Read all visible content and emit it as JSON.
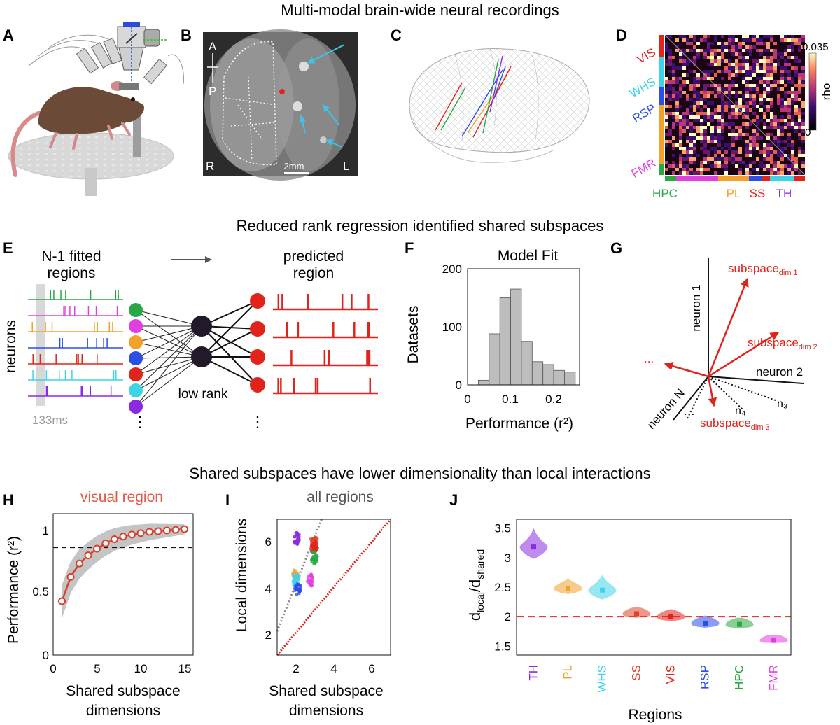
{
  "section_titles": [
    "Multi-modal brain-wide neural recordings",
    "Reduced rank regression identified shared subspaces",
    "Shared subspaces have lower dimensionality than local interactions"
  ],
  "panel_letters": [
    "A",
    "B",
    "C",
    "D",
    "E",
    "F",
    "G",
    "H",
    "I",
    "J"
  ],
  "panel_b": {
    "anterior": "A",
    "posterior": "P",
    "right": "R",
    "left": "L",
    "scale_bar": "2mm"
  },
  "panel_d": {
    "colorbar_max": "0.035",
    "colorbar_min": "0",
    "colorbar_label": "rho",
    "row_labels": [
      "VIS",
      "WHS",
      "RSP",
      "FMR"
    ],
    "col_labels": [
      "HPC",
      "PL",
      "SS",
      "TH"
    ]
  },
  "panel_e": {
    "fitted_title_1": "N-1 fitted",
    "fitted_title_2": "regions",
    "predicted_title_1": "predicted",
    "predicted_title_2": "region",
    "y_label": "neurons",
    "time_label": "133ms",
    "low_rank": "low rank",
    "ellipsis": "⋮"
  },
  "panel_f": {
    "title": "Model Fit",
    "ylabel": "Datasets",
    "xlabel": "Performance (r²)",
    "xticks": [
      "0",
      "0.1",
      "0.2"
    ],
    "yticks": [
      "0",
      "100",
      "200"
    ]
  },
  "panel_g": {
    "neuron1": "neuron 1",
    "neuron2": "neuron 2",
    "neuronN": "neuron N",
    "n3": "n₃",
    "n4": "n₄",
    "sub1": "subspace",
    "sub1_sub": "dim 1",
    "sub2": "subspace",
    "sub2_sub": "dim 2",
    "sub3": "subspace",
    "sub3_sub": "dim 3",
    "dots": "..."
  },
  "panel_h": {
    "title": "visual region",
    "ylabel": "Performance (r²)",
    "xlabel_1": "Shared subspace",
    "xlabel_2": "dimensions",
    "xticks": [
      "0",
      "5",
      "10",
      "15"
    ],
    "yticks": [
      "0",
      "0.5",
      "1"
    ]
  },
  "panel_i": {
    "title": "all regions",
    "ylabel": "Local dimensions",
    "xlabel_1": "Shared subspace",
    "xlabel_2": "dimensions",
    "xticks": [
      "2",
      "4",
      "6"
    ],
    "yticks": [
      "2",
      "4",
      "6"
    ]
  },
  "panel_j": {
    "ylabel_main": "d",
    "ylabel_sub1": "local",
    "ylabel_slash": "/d",
    "ylabel_sub2": "shared",
    "xlabel": "Regions",
    "yticks": [
      "1.5",
      "2",
      "2.5",
      "3",
      "3.5"
    ]
  },
  "colors": {
    "green": "#27a844",
    "magenta": "#e040e0",
    "orange": "#f2a12a",
    "blue": "#2b4de8",
    "red": "#e0241b",
    "cyan": "#3fd3e8",
    "purple": "#8a2be2",
    "gray": "#b0b0b0"
  },
  "chart_data": [
    {
      "type": "bar",
      "title": "Model Fit",
      "xlabel": "Performance (r²)",
      "ylabel": "Datasets",
      "bin_edges": [
        0.025,
        0.05,
        0.075,
        0.1,
        0.125,
        0.15,
        0.175,
        0.2,
        0.225,
        0.25
      ],
      "values": [
        8,
        88,
        150,
        165,
        75,
        40,
        35,
        25,
        22
      ],
      "xlim": [
        0,
        0.26
      ],
      "ylim": [
        0,
        200
      ]
    },
    {
      "type": "line",
      "title": "visual region",
      "xlabel": "Shared subspace dimensions",
      "ylabel": "Performance (r²)",
      "x": [
        1,
        2,
        3,
        4,
        5,
        6,
        7,
        8,
        9,
        10,
        11,
        12,
        13,
        14,
        15
      ],
      "y": [
        0.4,
        0.58,
        0.68,
        0.74,
        0.79,
        0.83,
        0.86,
        0.88,
        0.895,
        0.905,
        0.915,
        0.92,
        0.925,
        0.93,
        0.935
      ],
      "reference_line": 0.8,
      "xlim": [
        0,
        16
      ],
      "ylim": [
        0,
        1.05
      ]
    },
    {
      "type": "scatter",
      "title": "all regions",
      "xlabel": "Shared subspace dimensions",
      "ylabel": "Local dimensions",
      "clusters": [
        {
          "region": "TH",
          "x": 2.05,
          "y": 6.15
        },
        {
          "region": "PL",
          "x": 2.0,
          "y": 4.55
        },
        {
          "region": "WHS",
          "x": 2.0,
          "y": 4.3
        },
        {
          "region": "SS",
          "x": 2.95,
          "y": 6.05
        },
        {
          "region": "VIS",
          "x": 2.95,
          "y": 5.75
        },
        {
          "region": "RSP",
          "x": 2.1,
          "y": 3.9
        },
        {
          "region": "HPC",
          "x": 2.95,
          "y": 5.3
        },
        {
          "region": "FMR",
          "x": 2.75,
          "y": 4.3
        }
      ],
      "xlim": [
        1,
        7
      ],
      "ylim": [
        1,
        7
      ]
    },
    {
      "type": "bar",
      "title": "",
      "xlabel": "Regions",
      "ylabel": "dlocal/dshared",
      "categories": [
        "TH",
        "PL",
        "WHS",
        "SS",
        "VIS",
        "RSP",
        "HPC",
        "FMR"
      ],
      "values": [
        3.18,
        2.48,
        2.45,
        2.05,
        2.0,
        1.89,
        1.87,
        1.6
      ],
      "reference_line": 2.0,
      "ylim": [
        1.35,
        3.65
      ]
    }
  ]
}
